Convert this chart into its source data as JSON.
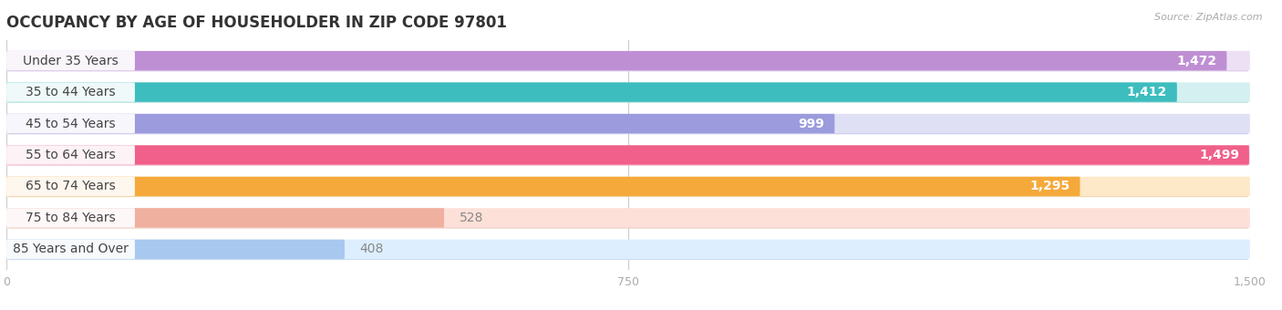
{
  "title": "OCCUPANCY BY AGE OF HOUSEHOLDER IN ZIP CODE 97801",
  "source": "Source: ZipAtlas.com",
  "categories": [
    "Under 35 Years",
    "35 to 44 Years",
    "45 to 54 Years",
    "55 to 64 Years",
    "65 to 74 Years",
    "75 to 84 Years",
    "85 Years and Over"
  ],
  "values": [
    1472,
    1412,
    999,
    1499,
    1295,
    528,
    408
  ],
  "bar_colors": [
    "#bf8fd4",
    "#3dbdbe",
    "#9b9bdd",
    "#f0608a",
    "#f5a93a",
    "#f0b0a0",
    "#a8c8f0"
  ],
  "bar_bg_colors": [
    "#ede0f5",
    "#d4f0f0",
    "#e0e0f5",
    "#fce0ea",
    "#fde8c8",
    "#fde0d8",
    "#ddeeff"
  ],
  "bar_shadow_colors": [
    "#d9c5e8",
    "#b8dede",
    "#cacae8",
    "#f0c0d0",
    "#edd5b0",
    "#eeccc0",
    "#c8dcf0"
  ],
  "xlim": [
    0,
    1500
  ],
  "xticks": [
    0,
    750,
    1500
  ],
  "title_fontsize": 12,
  "label_fontsize": 10,
  "value_fontsize": 10,
  "background_color": "#ffffff"
}
